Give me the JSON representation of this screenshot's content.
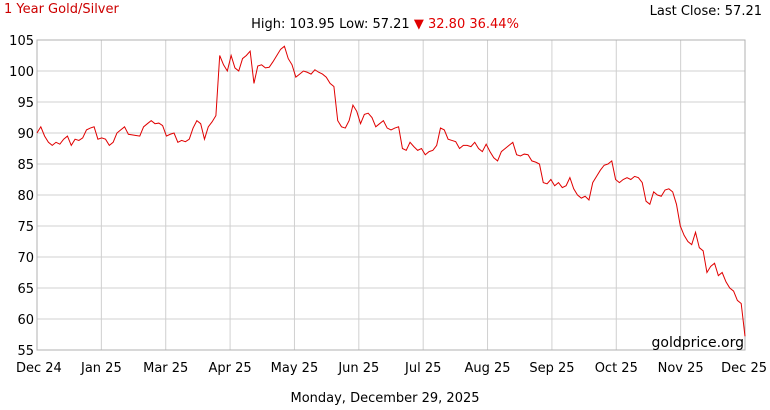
{
  "header": {
    "title": "1 Year Gold/Silver",
    "last_close_label": "Last Close: 57.21",
    "high_low_text": "High: 103.95 Low: 57.21",
    "change_arrow": "▼",
    "change_text": "32.80 36.44%"
  },
  "footer": {
    "date_caption": "Monday, December 29, 2025",
    "watermark": "goldprice.org"
  },
  "colors": {
    "line": "#e00000",
    "grid": "#d0d0d0",
    "title": "#cc0000"
  },
  "chart_data": {
    "type": "line",
    "title": "1 Year Gold/Silver",
    "xlabel": "",
    "ylabel": "",
    "ylim": [
      55,
      105
    ],
    "yticks": [
      55,
      60,
      65,
      70,
      75,
      80,
      85,
      90,
      95,
      100,
      105
    ],
    "xtick_labels": [
      "Dec 24",
      "Jan 25",
      "Mar 25",
      "Apr 25",
      "May 25",
      "Jun 25",
      "Jul 25",
      "Aug 25",
      "Sep 25",
      "Oct 25",
      "Nov 25",
      "Dec 25"
    ],
    "grid": true,
    "series": [
      {
        "values": [
          90.0,
          91.0,
          89.5,
          88.5,
          88.0,
          88.5,
          88.2,
          89.0,
          89.5,
          88.0,
          89.0,
          88.8,
          89.2,
          90.5,
          90.8,
          91.0,
          89.0,
          89.2,
          89.0,
          88.0,
          88.5,
          90.0,
          90.5,
          91.0,
          89.8,
          89.7,
          89.6,
          89.5,
          91.0,
          91.5,
          92.0,
          91.5,
          91.6,
          91.2,
          89.5,
          89.8,
          90.0,
          88.5,
          88.8,
          88.6,
          89.0,
          90.8,
          92.0,
          91.5,
          89.0,
          91.0,
          91.8,
          92.8,
          102.5,
          101.0,
          100.0,
          102.5,
          100.5,
          100.0,
          102.0,
          102.5,
          103.2,
          98.0,
          100.8,
          101.0,
          100.5,
          100.6,
          101.5,
          102.5,
          103.5,
          104.0,
          102.0,
          101.0,
          99.0,
          99.5,
          100.0,
          99.8,
          99.5,
          100.2,
          99.8,
          99.5,
          99.0,
          98.0,
          97.5,
          92.0,
          91.0,
          90.8,
          92.0,
          94.5,
          93.5,
          91.5,
          93.0,
          93.2,
          92.5,
          91.0,
          91.5,
          92.0,
          90.8,
          90.5,
          90.8,
          91.0,
          87.5,
          87.2,
          88.5,
          87.8,
          87.2,
          87.5,
          86.5,
          87.0,
          87.2,
          88.0,
          90.8,
          90.5,
          89.0,
          88.8,
          88.6,
          87.5,
          88.0,
          88.0,
          87.8,
          88.5,
          87.5,
          87.0,
          88.2,
          87.0,
          86.0,
          85.5,
          87.0,
          87.5,
          88.0,
          88.5,
          86.5,
          86.3,
          86.6,
          86.5,
          85.5,
          85.3,
          85.0,
          82.0,
          81.8,
          82.5,
          81.5,
          82.0,
          81.2,
          81.5,
          82.8,
          81.0,
          80.0,
          79.5,
          79.8,
          79.2,
          82.0,
          83.0,
          84.0,
          84.8,
          85.0,
          85.5,
          82.5,
          82.0,
          82.5,
          82.8,
          82.5,
          83.0,
          82.8,
          82.0,
          79.0,
          78.5,
          80.5,
          80.0,
          79.8,
          80.8,
          81.0,
          80.5,
          78.5,
          75.0,
          73.5,
          72.5,
          72.0,
          74.0,
          71.5,
          71.0,
          67.5,
          68.5,
          69.0,
          67.0,
          67.5,
          66.0,
          65.0,
          64.5,
          63.0,
          62.5,
          57.21
        ]
      }
    ]
  }
}
